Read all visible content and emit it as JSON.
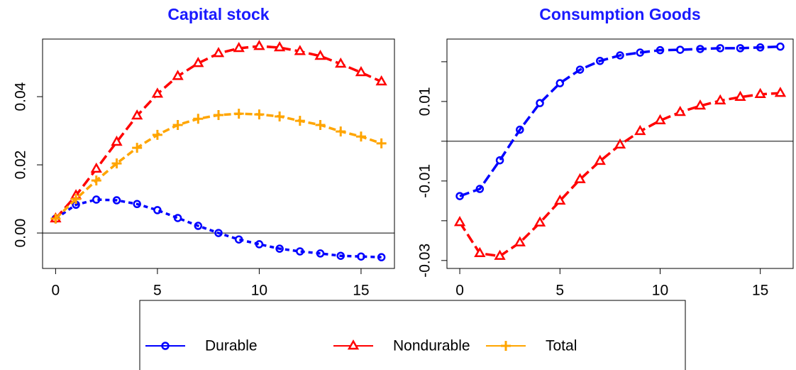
{
  "chart_data": [
    {
      "type": "line",
      "title": "Capital stock",
      "title_color": "#1a1aff",
      "x": [
        0,
        1,
        2,
        3,
        4,
        5,
        6,
        7,
        8,
        9,
        10,
        11,
        12,
        13,
        14,
        15,
        16
      ],
      "xlim": [
        -0.64,
        16.64
      ],
      "xticks": [
        0,
        5,
        10,
        15
      ],
      "ylim": [
        -0.0104,
        0.0569
      ],
      "yticks": [
        {
          "value": 0,
          "label": "0.00"
        },
        {
          "value": 0.02,
          "label": "0.02"
        },
        {
          "value": 0.04,
          "label": "0.04"
        }
      ],
      "hline": 0,
      "legend": "bottom",
      "series": [
        {
          "name": "Durable",
          "color": "#0000ff",
          "marker": "circle",
          "dash": "6 5",
          "values": [
            0.0042,
            0.0083,
            0.0098,
            0.0096,
            0.0085,
            0.0067,
            0.0044,
            0.0021,
            0.0,
            -0.0019,
            -0.0033,
            -0.0046,
            -0.0054,
            -0.006,
            -0.0067,
            -0.0069,
            -0.0071
          ]
        },
        {
          "name": "Nondurable",
          "color": "#ff0000",
          "marker": "triangle",
          "dash": "14 6",
          "values": [
            0.0042,
            0.011,
            0.0188,
            0.0267,
            0.0344,
            0.0408,
            0.046,
            0.0498,
            0.0527,
            0.0542,
            0.0548,
            0.0544,
            0.0533,
            0.0519,
            0.0496,
            0.0471,
            0.0444
          ]
        },
        {
          "name": "Total",
          "color": "#ffa500",
          "marker": "plus",
          "dash": "10 5",
          "values": [
            0.0042,
            0.01,
            0.0154,
            0.0204,
            0.025,
            0.0288,
            0.0317,
            0.0335,
            0.0346,
            0.035,
            0.0348,
            0.0342,
            0.0329,
            0.0317,
            0.0298,
            0.0283,
            0.0263
          ]
        }
      ]
    },
    {
      "type": "line",
      "title": "Consumption Goods",
      "title_color": "#1a1aff",
      "x": [
        0,
        1,
        2,
        3,
        4,
        5,
        6,
        7,
        8,
        9,
        10,
        11,
        12,
        13,
        14,
        15,
        16
      ],
      "xlim": [
        -0.64,
        16.64
      ],
      "xticks": [
        0,
        5,
        10,
        15
      ],
      "ylim": [
        -0.032,
        0.0257
      ],
      "yticks": [
        -0.03,
        {
          "value": -0.02,
          "label": null
        },
        -0.01,
        {
          "value": 0,
          "label": null
        },
        0.01,
        {
          "value": 0.02,
          "label": null
        }
      ],
      "hline": 0,
      "series": [
        {
          "name": "Durable",
          "color": "#0000ff",
          "marker": "circle",
          "dash": "14 6",
          "values": [
            -0.0138,
            -0.012,
            -0.0048,
            0.0029,
            0.0096,
            0.0146,
            0.018,
            0.0202,
            0.0216,
            0.0223,
            0.0229,
            0.023,
            0.0232,
            0.0234,
            0.0234,
            0.0236,
            0.0238
          ]
        },
        {
          "name": "Nondurable",
          "color": "#ff0000",
          "marker": "triangle",
          "dash": "14 6",
          "values": [
            -0.0204,
            -0.0282,
            -0.0289,
            -0.0255,
            -0.0205,
            -0.015,
            -0.0096,
            -0.005,
            -0.0009,
            0.0025,
            0.0052,
            0.0073,
            0.0089,
            0.0102,
            0.0111,
            0.0118,
            0.0121
          ]
        }
      ]
    }
  ]
}
